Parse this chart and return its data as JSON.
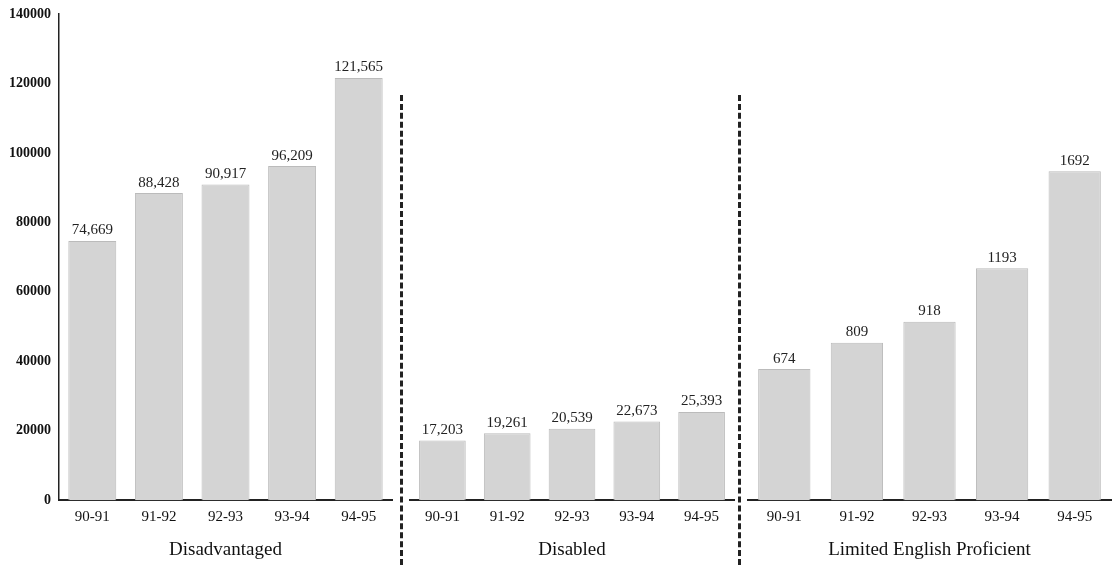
{
  "chart_data": [
    {
      "type": "bar",
      "xlabel": "Disadvantaged",
      "categories": [
        "90-91",
        "91-92",
        "92-93",
        "93-94",
        "94-95"
      ],
      "values": [
        74669,
        88428,
        90917,
        96209,
        121565
      ],
      "color": "#d4d4d4",
      "value_labels": [
        "74,669",
        "88,428",
        "90,917",
        "96,209",
        "121,565"
      ],
      "ylim": [
        0,
        140000
      ],
      "yticks": [
        0,
        20000,
        40000,
        60000,
        80000,
        100000,
        120000,
        140000
      ],
      "grid": false,
      "legend": false
    },
    {
      "type": "bar",
      "xlabel": "Disabled",
      "categories": [
        "90-91",
        "91-92",
        "92-93",
        "93-94",
        "94-95"
      ],
      "values": [
        17203,
        19261,
        20539,
        22673,
        25393
      ],
      "color": "#d4d4d4",
      "value_labels": [
        "17,203",
        "19,261",
        "20,539",
        "22,673",
        "25,393"
      ],
      "ylim": [
        0,
        140000
      ],
      "tick_labels": "x",
      "grid": false,
      "legend": false
    },
    {
      "type": "bar",
      "xlabel": "Limited English Proficient",
      "categories": [
        "90-91",
        "91-92",
        "92-93",
        "93-94",
        "94-95"
      ],
      "values": [
        674,
        809,
        918,
        1193,
        1692
      ],
      "color": "#d4d4d4",
      "value_labels": [
        "674",
        "809",
        "918",
        "1193",
        "1692"
      ],
      "tick_labels": "x",
      "grid": false,
      "legend": false
    }
  ]
}
